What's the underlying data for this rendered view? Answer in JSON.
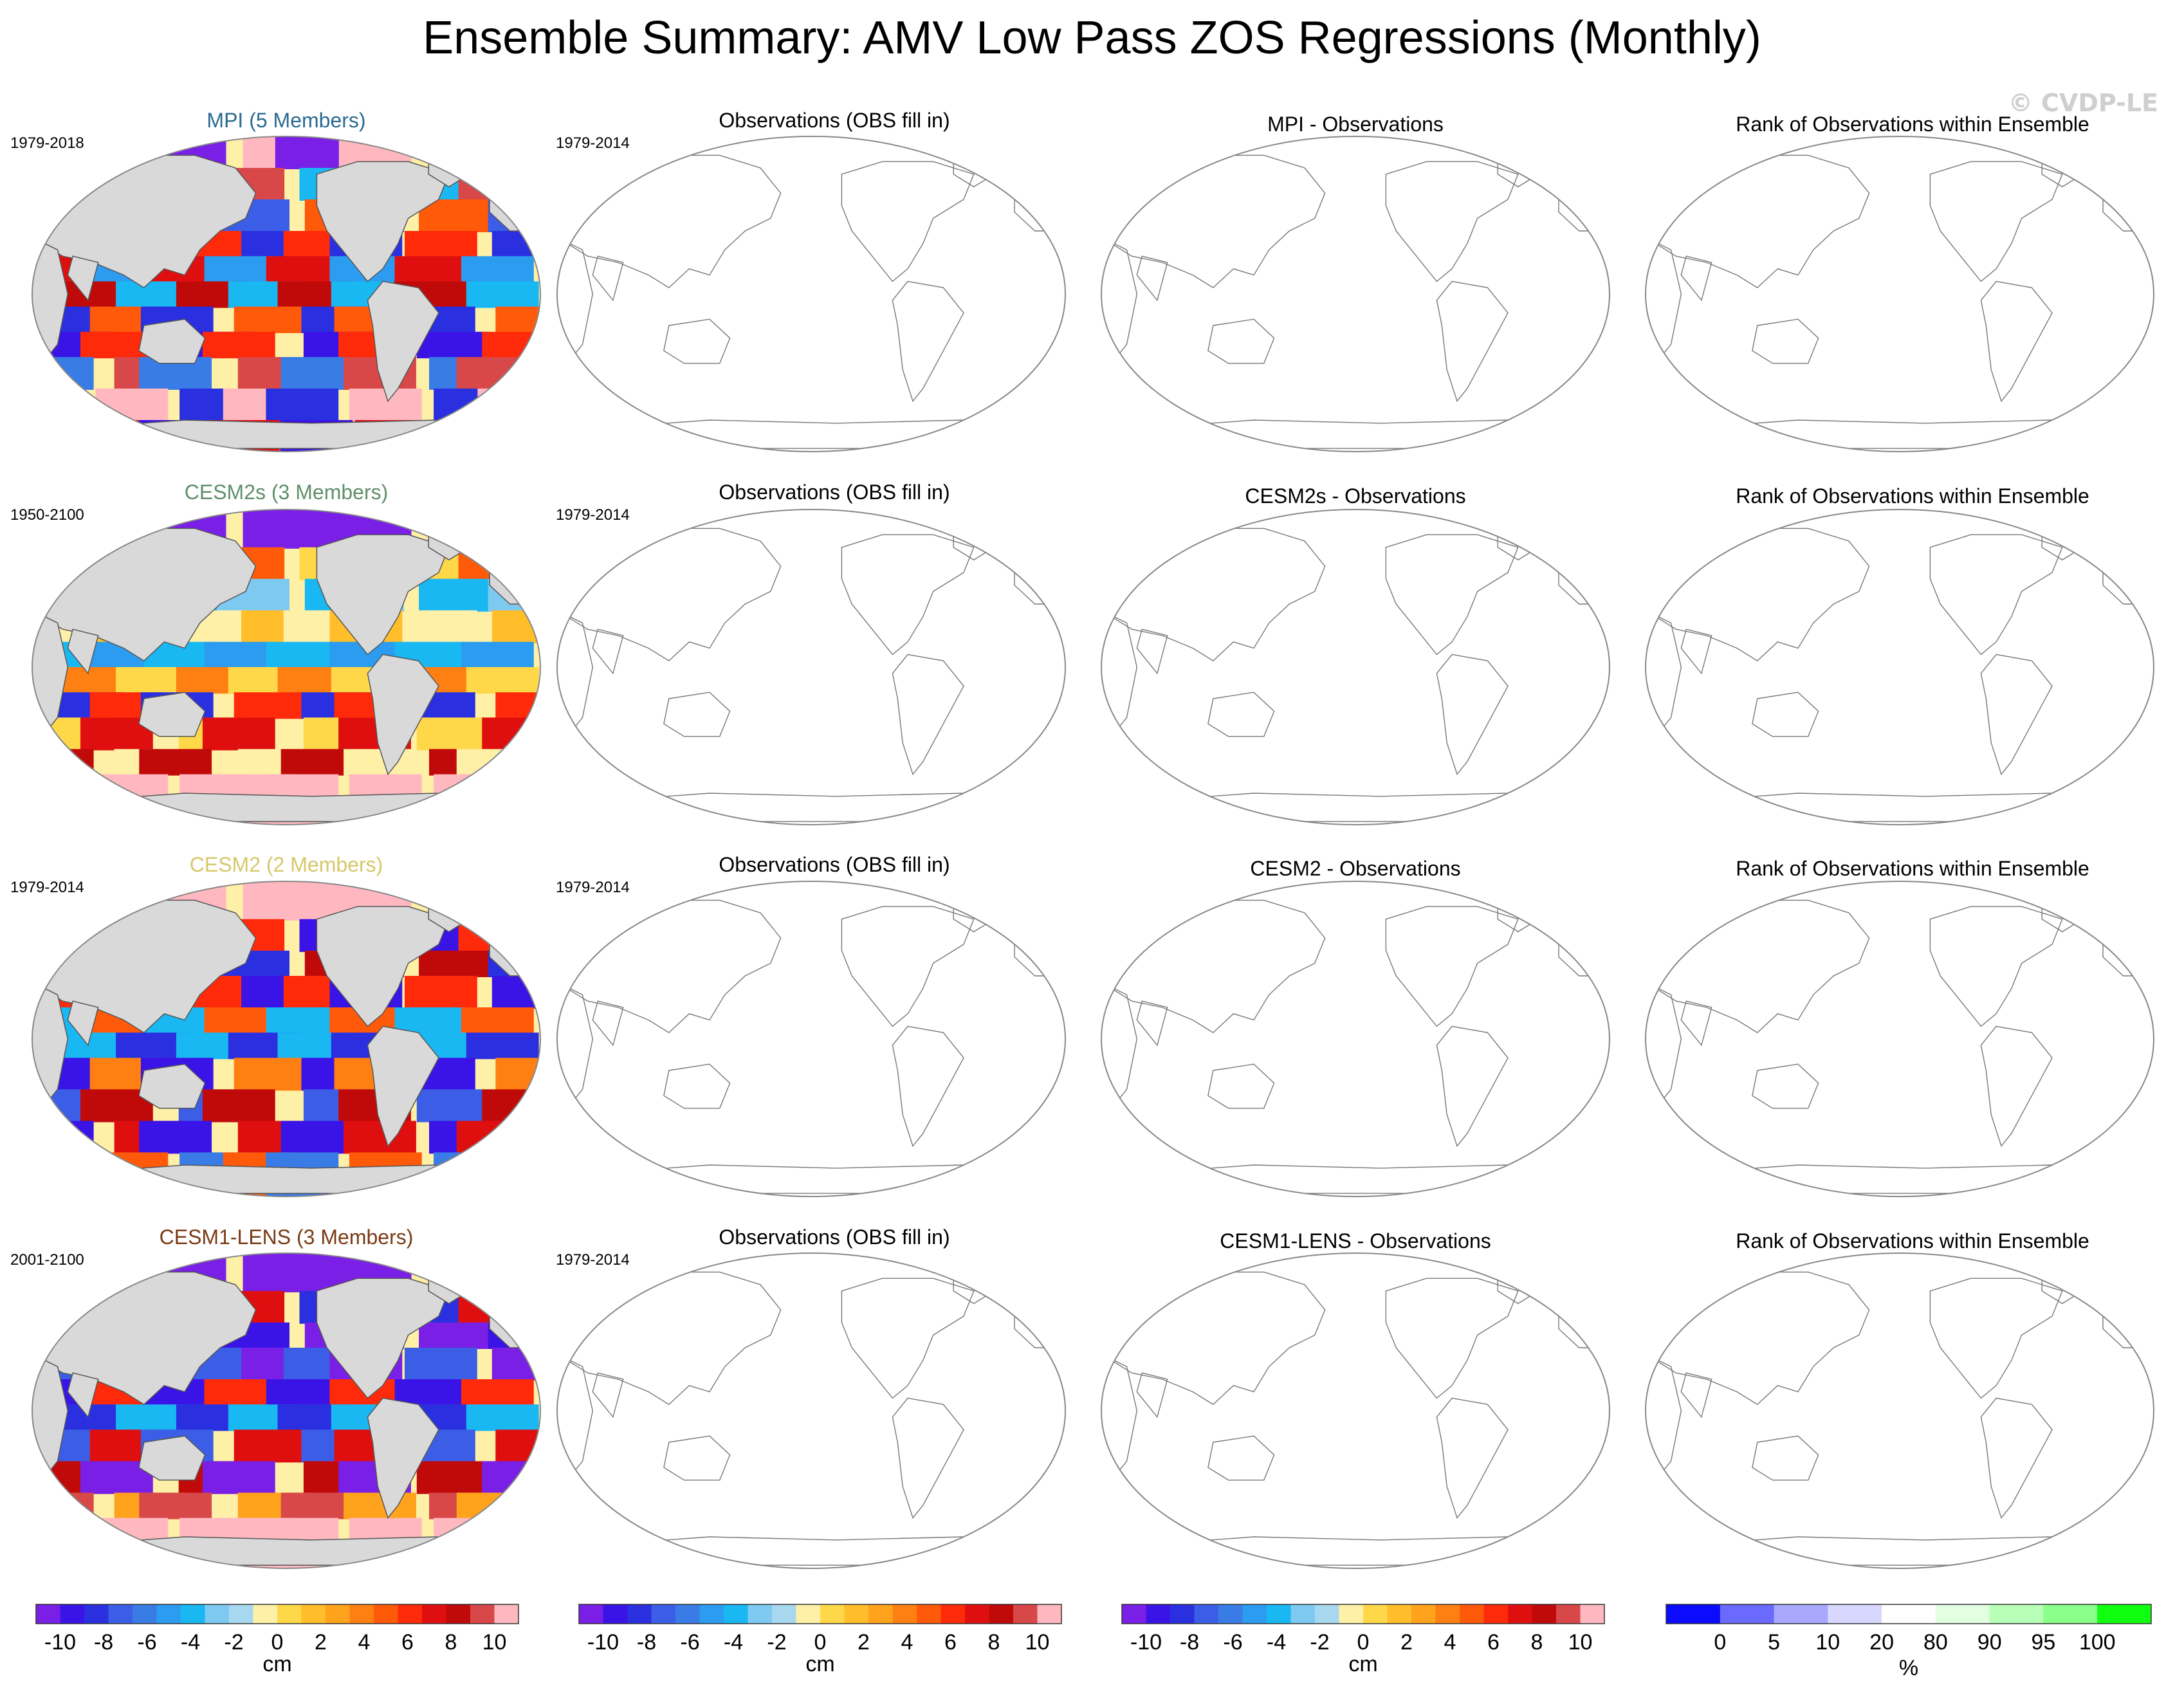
{
  "title": "Ensemble Summary: AMV Low Pass ZOS Regressions (Monthly)",
  "watermark": "© CVDP-LE",
  "colors": {
    "land": "#d9d9d9",
    "coast": "#555555",
    "frame": "#888888",
    "diverging": [
      "#7a1fe6",
      "#3a14e6",
      "#2a30e0",
      "#3c5ee6",
      "#3a7ce6",
      "#2b9cf0",
      "#19b8f2",
      "#7ec9f0",
      "#a8d8f0",
      "#fff0a8",
      "#ffd84a",
      "#ffbe2a",
      "#ffa21c",
      "#ff8012",
      "#ff5a0a",
      "#ff2a0a",
      "#e00f0f",
      "#c00a0a",
      "#d84848",
      "#ffb8c0"
    ],
    "rank": [
      "#0b0bff",
      "#6a6aff",
      "#a8a8ff",
      "#d8d8ff",
      "#ffffff",
      "#e2ffe2",
      "#b8ffb8",
      "#8aff8a",
      "#10ff10"
    ],
    "model_titles": [
      "#2a6b92",
      "#5f8f6a",
      "#d6c86a",
      "#7a3a14"
    ]
  },
  "rows": [
    {
      "model": "MPI (5 Members)",
      "model_period": "1979-2018",
      "obs_title": "Observations (OBS fill in)",
      "obs_period": "1979-2014",
      "diff_title": "MPI - Observations",
      "rank_title": "Rank of Observations within Ensemble"
    },
    {
      "model": "CESM2s (3 Members)",
      "model_period": "1950-2100",
      "obs_title": "Observations (OBS fill in)",
      "obs_period": "1979-2014",
      "diff_title": "CESM2s - Observations",
      "rank_title": "Rank of Observations within Ensemble"
    },
    {
      "model": "CESM2 (2 Members)",
      "model_period": "1979-2014",
      "obs_title": "Observations (OBS fill in)",
      "obs_period": "1979-2014",
      "diff_title": "CESM2 - Observations",
      "rank_title": "Rank of Observations within Ensemble"
    },
    {
      "model": "CESM1-LENS (3 Members)",
      "model_period": "2001-2100",
      "obs_title": "Observations (OBS fill in)",
      "obs_period": "1979-2014",
      "diff_title": "CESM1-LENS - Observations",
      "rank_title": "Rank of Observations within Ensemble"
    }
  ],
  "colorbars": [
    {
      "ticks": [
        "-10",
        "-8",
        "-6",
        "-4",
        "-2",
        "0",
        "2",
        "4",
        "6",
        "8",
        "10"
      ],
      "unit": "cm"
    },
    {
      "ticks": [
        "-10",
        "-8",
        "-6",
        "-4",
        "-2",
        "0",
        "2",
        "4",
        "6",
        "8",
        "10"
      ],
      "unit": "cm"
    },
    {
      "ticks": [
        "-10",
        "-8",
        "-6",
        "-4",
        "-2",
        "0",
        "2",
        "4",
        "6",
        "8",
        "10"
      ],
      "unit": "cm"
    },
    {
      "ticks": [
        "0",
        "5",
        "10",
        "20",
        "80",
        "90",
        "95",
        "100"
      ],
      "unit": "%"
    }
  ],
  "chart_data": {
    "type": "heatmap",
    "title": "Ensemble Summary: AMV Low Pass ZOS Regressions (Monthly)",
    "variable": "ZOS regression onto AMV low pass index",
    "layout": "4 rows x 4 columns of global map panels",
    "columns": [
      "model ensemble",
      "observations",
      "model - observations",
      "rank of observations"
    ],
    "diverging_scale": {
      "unit": "cm",
      "ticks": [
        -10,
        -8,
        -6,
        -4,
        -2,
        0,
        2,
        4,
        6,
        8,
        10
      ],
      "range": [
        -10,
        10
      ]
    },
    "rank_scale": {
      "unit": "%",
      "ticks": [
        0,
        5,
        10,
        20,
        80,
        90,
        95,
        100
      ],
      "range": [
        0,
        100
      ]
    },
    "filled_panels": [
      "MPI (5 Members)",
      "CESM2s (3 Members)",
      "CESM2 (2 Members)",
      "CESM1-LENS (3 Members)"
    ],
    "empty_panels": "observations, difference and rank columns show coastlines only (no data)"
  }
}
